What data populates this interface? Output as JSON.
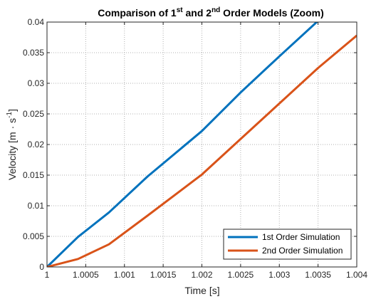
{
  "chart_data": {
    "type": "line",
    "title": {
      "part1": "Comparison of 1",
      "sup1": "st",
      "part2": " and 2",
      "sup2": "nd",
      "part3": " Order Models (Zoom)"
    },
    "xlabel": "Time [s]",
    "ylabel": {
      "main": "Velocity [m · s",
      "sup": "-1",
      "end": "]"
    },
    "xlim": [
      1,
      1.004
    ],
    "ylim": [
      0,
      0.04
    ],
    "xticks": [
      1,
      1.0005,
      1.001,
      1.0015,
      1.002,
      1.0025,
      1.003,
      1.0035,
      1.004
    ],
    "xtick_labels": [
      "1",
      "1.0005",
      "1.001",
      "1.0015",
      "1.002",
      "1.0025",
      "1.003",
      "1.0035",
      "1.004"
    ],
    "yticks": [
      0,
      0.005,
      0.01,
      0.015,
      0.02,
      0.025,
      0.03,
      0.035,
      0.04
    ],
    "ytick_labels": [
      "0",
      "0.005",
      "0.01",
      "0.015",
      "0.02",
      "0.025",
      "0.03",
      "0.035",
      "0.04"
    ],
    "grid": true,
    "legend_position": "bottom-right",
    "series": [
      {
        "name": "1st Order Simulation",
        "color": "#0072BD",
        "x": [
          1,
          1.0004,
          1.0008,
          1.0013,
          1.002,
          1.0025,
          1.003,
          1.0035
        ],
        "y": [
          0,
          0.0049,
          0.0089,
          0.0148,
          0.0222,
          0.0285,
          0.0344,
          0.0402
        ]
      },
      {
        "name": "2nd Order Simulation",
        "color": "#D95319",
        "x": [
          1,
          1.0004,
          1.0008,
          1.0013,
          1.002,
          1.0025,
          1.003,
          1.0035,
          1.004
        ],
        "y": [
          0,
          0.0013,
          0.0037,
          0.0084,
          0.0151,
          0.0209,
          0.0267,
          0.0325,
          0.0378
        ]
      }
    ]
  }
}
